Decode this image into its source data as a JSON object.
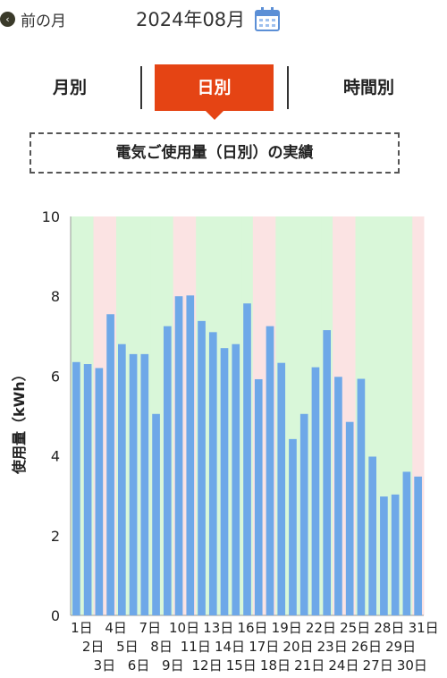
{
  "header": {
    "prev_label": "前の月",
    "month_title": "2024年08月",
    "calendar_icon": "calendar-icon"
  },
  "tabs": [
    {
      "label": "月別",
      "active": false
    },
    {
      "label": "日別",
      "active": true
    },
    {
      "label": "時間別",
      "active": false
    }
  ],
  "caption": "電気ご使用量（日別）の実績",
  "colors": {
    "accent": "#e54414",
    "bar": "#6ea8e8",
    "weekday_band": "#d9f7d9",
    "weekend_band": "#fbe3e3"
  },
  "chart_data": {
    "type": "bar",
    "ylabel": "使用量（kWh）",
    "ylim": [
      0,
      10
    ],
    "yticks": [
      "0",
      "2",
      "4",
      "6",
      "8",
      "10"
    ],
    "categories": [
      "1日",
      "2日",
      "3日",
      "4日",
      "5日",
      "6日",
      "7日",
      "8日",
      "9日",
      "10日",
      "11日",
      "12日",
      "13日",
      "14日",
      "15日",
      "16日",
      "17日",
      "18日",
      "19日",
      "20日",
      "21日",
      "22日",
      "23日",
      "24日",
      "25日",
      "26日",
      "27日",
      "28日",
      "29日",
      "30日",
      "31日"
    ],
    "values": [
      6.35,
      6.3,
      6.2,
      7.55,
      6.8,
      6.55,
      6.55,
      5.05,
      7.25,
      8.0,
      8.02,
      7.38,
      7.1,
      6.7,
      6.8,
      7.82,
      5.92,
      7.25,
      6.33,
      4.42,
      5.05,
      6.22,
      7.15,
      5.98,
      4.85,
      5.93,
      3.98,
      2.98,
      3.03,
      3.6,
      3.48
    ],
    "weekend_days": [
      3,
      4,
      10,
      11,
      17,
      18,
      24,
      25,
      31
    ],
    "grid": false
  }
}
